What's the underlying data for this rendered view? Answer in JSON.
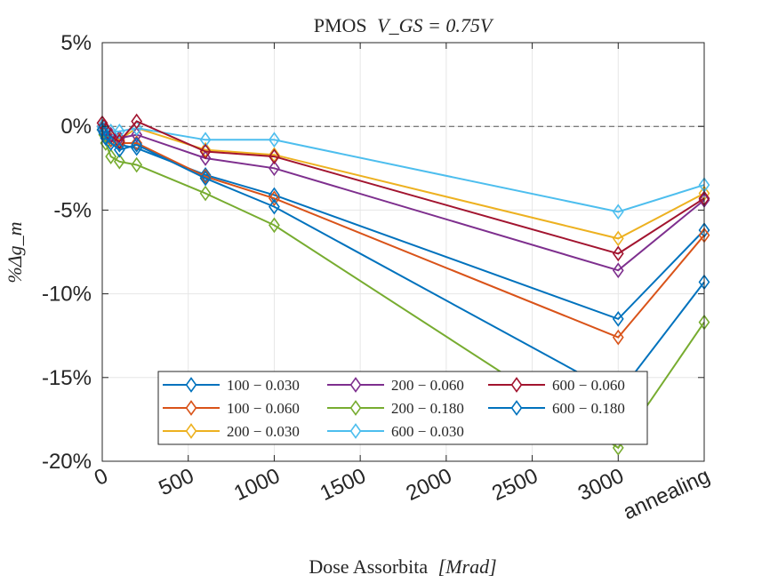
{
  "chart_data": {
    "type": "line",
    "title_prefix": "PMOS",
    "title_math": "V_GS = 0.75V",
    "xlabel": "Dose Assorbita",
    "xlabel_unit": "[Mrad]",
    "ylabel_math": "%Δg_m",
    "x": [
      0,
      10,
      20,
      50,
      100,
      200,
      600,
      1000,
      3000,
      3500
    ],
    "xlim": [
      0,
      3500
    ],
    "ylim": [
      -20,
      5
    ],
    "x_ticks": [
      {
        "value": 0,
        "label": "0"
      },
      {
        "value": 500,
        "label": "500"
      },
      {
        "value": 1000,
        "label": "1000"
      },
      {
        "value": 1500,
        "label": "1500"
      },
      {
        "value": 2000,
        "label": "2000"
      },
      {
        "value": 2500,
        "label": "2500"
      },
      {
        "value": 3000,
        "label": "3000"
      },
      {
        "value": 3500,
        "label": "annealing"
      }
    ],
    "y_ticks": [
      {
        "value": 5,
        "label": "5%"
      },
      {
        "value": 0,
        "label": "0%"
      },
      {
        "value": -5,
        "label": "-5%"
      },
      {
        "value": -10,
        "label": "-10%"
      },
      {
        "value": -15,
        "label": "-15%"
      },
      {
        "value": -20,
        "label": "-20%"
      }
    ],
    "reference_line": 0,
    "grid": true,
    "legend_position": "bottom-center",
    "marker": "diamond",
    "series": [
      {
        "name": "100 − 0.030",
        "color": "#0072BD",
        "values": [
          0,
          -0.2,
          -0.4,
          -0.8,
          -1.1,
          -1.3,
          -2.9,
          -4.1,
          -11.5,
          -6.2
        ]
      },
      {
        "name": "100 − 0.060",
        "color": "#D95319",
        "values": [
          0,
          -0.2,
          -0.5,
          -0.8,
          -1.0,
          -1.0,
          -3.0,
          -4.3,
          -12.6,
          -6.5
        ]
      },
      {
        "name": "200 − 0.030",
        "color": "#EDB120",
        "values": [
          0,
          -0.1,
          -0.3,
          -0.5,
          -0.8,
          -0.1,
          -1.4,
          -1.7,
          -6.7,
          -4.0
        ]
      },
      {
        "name": "200 − 0.060",
        "color": "#7E2F8E",
        "values": [
          0,
          -0.2,
          -0.3,
          -0.5,
          -0.7,
          -0.5,
          -1.9,
          -2.5,
          -8.6,
          -4.4
        ]
      },
      {
        "name": "200 − 0.180",
        "color": "#77AC30",
        "values": [
          -0.2,
          -0.5,
          -1.0,
          -1.8,
          -2.1,
          -2.3,
          -4.0,
          -5.9,
          -19.2,
          -11.7
        ]
      },
      {
        "name": "600 − 0.030",
        "color": "#4DBEEE",
        "values": [
          0,
          -0.1,
          -0.2,
          -0.3,
          -0.3,
          -0.1,
          -0.8,
          -0.8,
          -5.1,
          -3.5
        ]
      },
      {
        "name": "600 − 0.060",
        "color": "#A2142F",
        "values": [
          0.2,
          0,
          -0.2,
          -0.6,
          -0.9,
          0.3,
          -1.5,
          -1.8,
          -7.6,
          -4.3
        ]
      },
      {
        "name": "600 − 0.180",
        "color": "#0072BD",
        "values": [
          -0.2,
          -0.4,
          -0.7,
          -1.0,
          -1.4,
          -1.1,
          -3.1,
          -4.8,
          -16.0,
          -9.3
        ]
      }
    ]
  }
}
